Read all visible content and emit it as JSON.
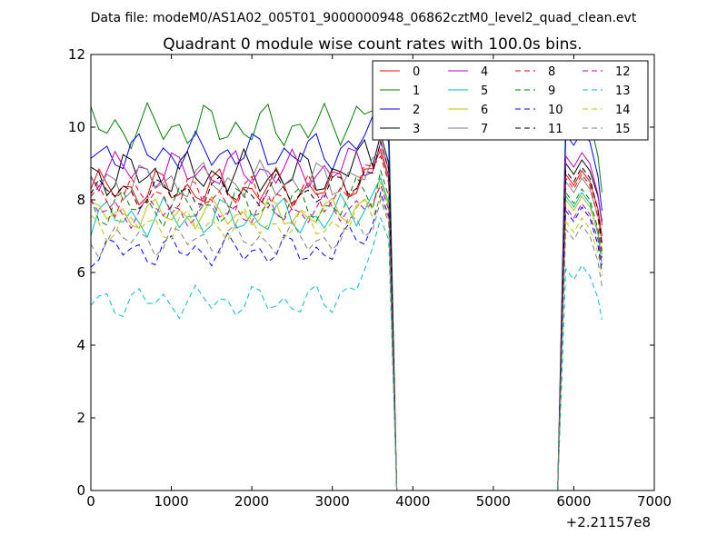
{
  "chart_data": {
    "type": "line",
    "suptitle": "Data file: modeM0/AS1A02_005T01_9000000948_06862cztM0_level2_quad_clean.evt",
    "title": "Quadrant 0 module wise count rates with 100.0s bins.",
    "xlabel": "",
    "ylabel": "",
    "x_offset_label": "+2.21157e8",
    "xlim": [
      0,
      7000
    ],
    "ylim": [
      0,
      12
    ],
    "x_ticks": [
      "0",
      "1000",
      "2000",
      "3000",
      "4000",
      "5000",
      "6000",
      "7000"
    ],
    "y_ticks": [
      "0",
      "2",
      "4",
      "6",
      "8",
      "10",
      "12"
    ],
    "legend_position": "top-right",
    "series": [
      {
        "name": "0",
        "color": "#ff0000",
        "dash": "solid",
        "level": 8.3,
        "amp": 0.3,
        "peak": 9.4,
        "post": 8.5,
        "end": 7.0
      },
      {
        "name": "1",
        "color": "#008000",
        "dash": "solid",
        "level": 10.0,
        "amp": 0.35,
        "peak": 11.3,
        "post": 10.2,
        "end": 8.2
      },
      {
        "name": "2",
        "color": "#0000ff",
        "dash": "solid",
        "level": 9.3,
        "amp": 0.3,
        "peak": 10.4,
        "post": 9.6,
        "end": 7.7
      },
      {
        "name": "3",
        "color": "#000000",
        "dash": "solid",
        "level": 8.7,
        "amp": 0.35,
        "peak": 9.8,
        "post": 8.8,
        "end": 7.4
      },
      {
        "name": "4",
        "color": "#bf00bf",
        "dash": "solid",
        "level": 8.8,
        "amp": 0.3,
        "peak": 9.6,
        "post": 9.0,
        "end": 7.3
      },
      {
        "name": "5",
        "color": "#00bfbf",
        "dash": "solid",
        "level": 7.5,
        "amp": 0.3,
        "peak": 8.6,
        "post": 7.9,
        "end": 6.2
      },
      {
        "name": "6",
        "color": "#bfbf00",
        "dash": "solid",
        "level": 7.6,
        "amp": 0.25,
        "peak": 8.5,
        "post": 7.8,
        "end": 6.5
      },
      {
        "name": "7",
        "color": "#808080",
        "dash": "solid",
        "level": 8.5,
        "amp": 0.3,
        "peak": 9.3,
        "post": 8.3,
        "end": 6.8
      },
      {
        "name": "8",
        "color": "#ff0000",
        "dash": "dashed",
        "level": 8.1,
        "amp": 0.3,
        "peak": 9.2,
        "post": 8.4,
        "end": 6.6
      },
      {
        "name": "9",
        "color": "#008000",
        "dash": "dashed",
        "level": 7.8,
        "amp": 0.3,
        "peak": 8.8,
        "post": 8.0,
        "end": 6.4
      },
      {
        "name": "10",
        "color": "#0000ff",
        "dash": "dashed",
        "level": 6.6,
        "amp": 0.25,
        "peak": 8.2,
        "post": 7.5,
        "end": 6.0
      },
      {
        "name": "11",
        "color": "#000000",
        "dash": "dashed",
        "level": 8.2,
        "amp": 0.25,
        "peak": 9.6,
        "post": 8.6,
        "end": 6.8
      },
      {
        "name": "12",
        "color": "#bf00bf",
        "dash": "dashed",
        "level": 7.7,
        "amp": 0.25,
        "peak": 8.4,
        "post": 7.6,
        "end": 6.2
      },
      {
        "name": "13",
        "color": "#00bfbf",
        "dash": "dashed",
        "level": 5.2,
        "amp": 0.25,
        "peak": 7.5,
        "post": 5.9,
        "end": 4.7
      },
      {
        "name": "14",
        "color": "#bfbf00",
        "dash": "dashed",
        "level": 7.3,
        "amp": 0.25,
        "peak": 8.1,
        "post": 7.2,
        "end": 5.9
      },
      {
        "name": "15",
        "color": "#808080",
        "dash": "dashed",
        "level": 6.9,
        "amp": 0.25,
        "peak": 8.0,
        "post": 7.0,
        "end": 5.6
      }
    ],
    "time_bins_active_1": [
      0,
      100,
      200,
      300,
      400,
      500,
      600,
      700,
      800,
      900,
      1000,
      1100,
      1200,
      1300,
      1400,
      1500,
      1600,
      1700,
      1800,
      1900,
      2000,
      2100,
      2200,
      2300,
      2400,
      2500,
      2600,
      2700,
      2800,
      2900,
      3000,
      3100,
      3200,
      3300,
      3400,
      3500,
      3600,
      3700
    ],
    "time_bins_gap": [
      3800,
      5800
    ],
    "time_bins_active_2": [
      5900,
      6000,
      6100,
      6200,
      6300,
      6350
    ]
  }
}
